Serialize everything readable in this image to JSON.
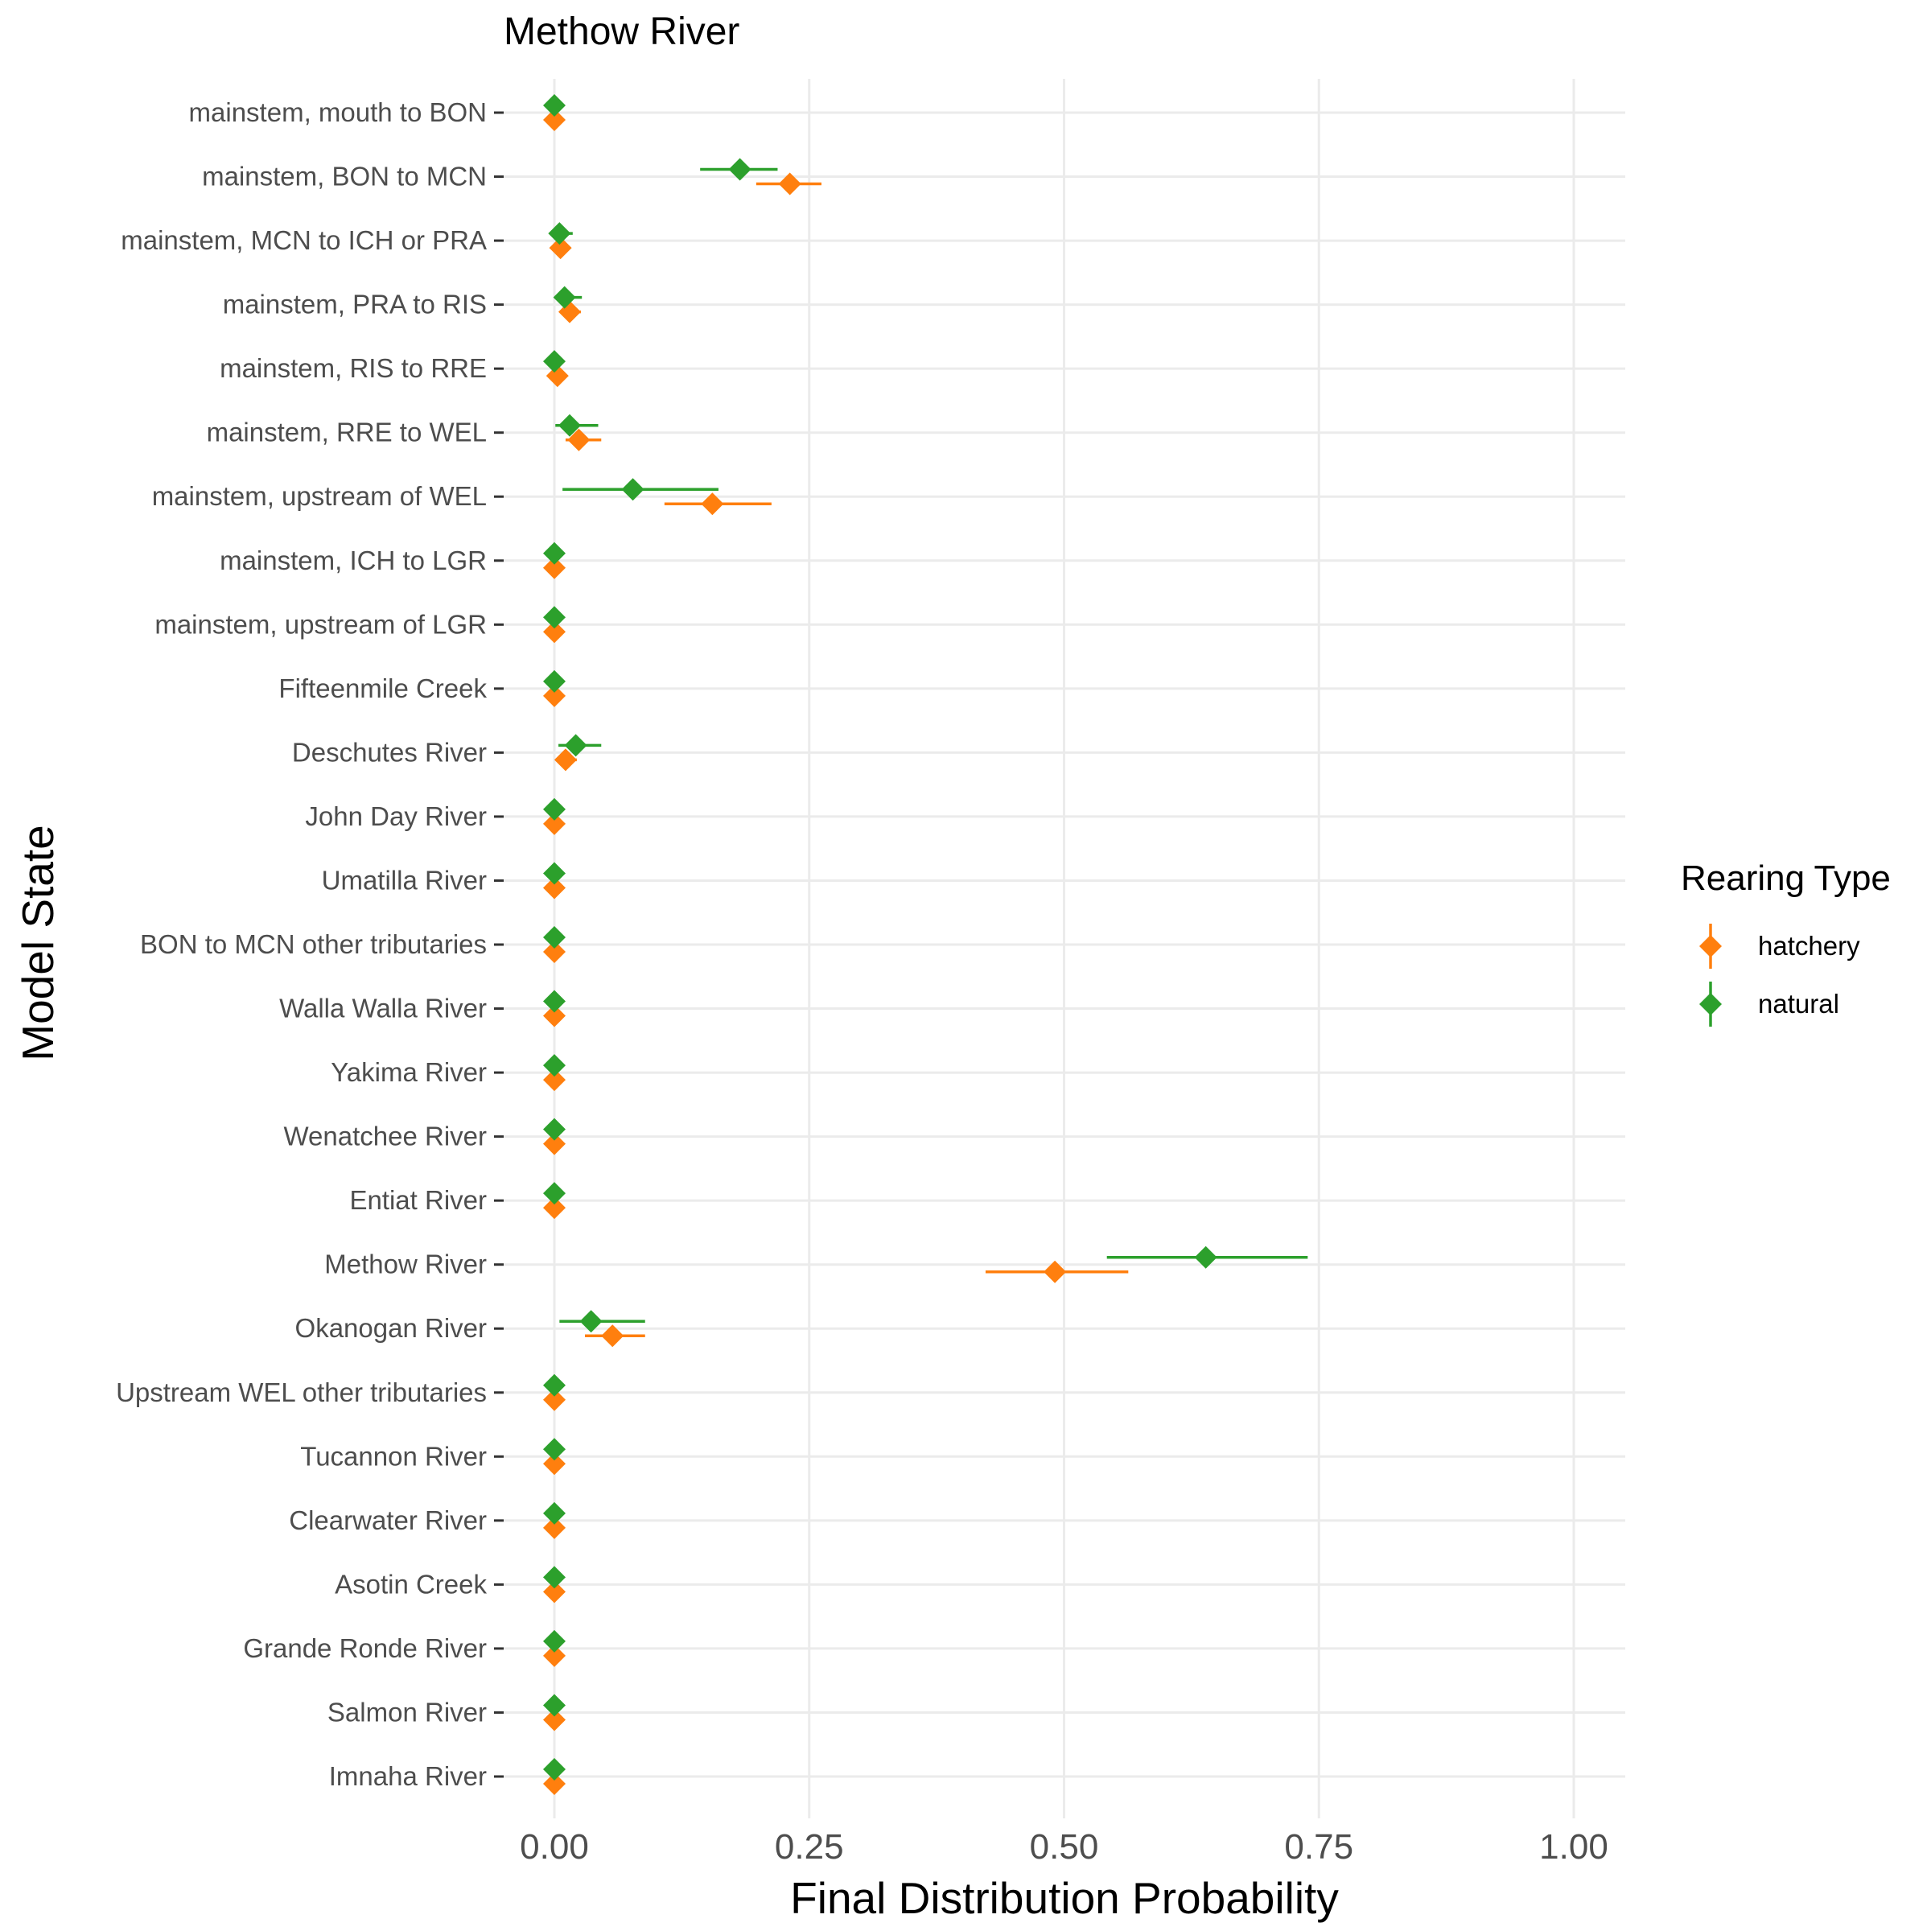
{
  "chart_data": {
    "type": "scatter",
    "title": "Methow River",
    "xlabel": "Final Distribution Probability",
    "ylabel": "Model State",
    "xlim": [
      -0.05,
      1.05
    ],
    "xticks": [
      0.0,
      0.25,
      0.5,
      0.75,
      1.0
    ],
    "xtick_labels": [
      "0.00",
      "0.25",
      "0.50",
      "0.75",
      "1.00"
    ],
    "grid": true,
    "categories": [
      "mainstem, mouth to BON",
      "mainstem, BON to MCN",
      "mainstem, MCN to ICH or PRA",
      "mainstem, PRA to RIS",
      "mainstem, RIS to RRE",
      "mainstem, RRE to WEL",
      "mainstem, upstream of WEL",
      "mainstem, ICH to LGR",
      "mainstem, upstream of LGR",
      "Fifteenmile Creek",
      "Deschutes River",
      "John Day River",
      "Umatilla River",
      "BON to MCN other tributaries",
      "Walla Walla River",
      "Yakima River",
      "Wenatchee River",
      "Entiat River",
      "Methow River",
      "Okanogan River",
      "Upstream WEL other tributaries",
      "Tucannon River",
      "Clearwater River",
      "Asotin Creek",
      "Grande Ronde River",
      "Salmon River",
      "Imnaha River"
    ],
    "legend": {
      "title": "Rearing Type",
      "position": "right"
    },
    "series": [
      {
        "name": "hatchery",
        "color": "#ff7f0e",
        "values": [
          0.0,
          0.231,
          0.006,
          0.015,
          0.003,
          0.024,
          0.155,
          0.0,
          0.0,
          0.0,
          0.011,
          0.0,
          0.0,
          0.0,
          0.0,
          0.0,
          0.0,
          0.0,
          0.491,
          0.057,
          0.0,
          0.0,
          0.0,
          0.0,
          0.0,
          0.0,
          0.0
        ],
        "lower": [
          0.0,
          0.198,
          0.001,
          0.006,
          0.0,
          0.011,
          0.108,
          0.0,
          0.0,
          0.0,
          0.003,
          0.0,
          0.0,
          0.0,
          0.0,
          0.0,
          0.0,
          0.0,
          0.423,
          0.03,
          0.0,
          0.0,
          0.0,
          0.0,
          0.0,
          0.0,
          0.0
        ],
        "upper": [
          0.002,
          0.262,
          0.012,
          0.026,
          0.008,
          0.046,
          0.213,
          0.002,
          0.002,
          0.002,
          0.022,
          0.002,
          0.002,
          0.002,
          0.002,
          0.002,
          0.002,
          0.002,
          0.563,
          0.089,
          0.002,
          0.002,
          0.002,
          0.002,
          0.002,
          0.002,
          0.002
        ]
      },
      {
        "name": "natural",
        "color": "#2ca02c",
        "values": [
          0.0,
          0.182,
          0.005,
          0.01,
          0.0,
          0.015,
          0.077,
          0.0,
          0.0,
          0.0,
          0.021,
          0.0,
          0.0,
          0.0,
          0.0,
          0.0,
          0.0,
          0.0,
          0.639,
          0.036,
          0.0,
          0.0,
          0.0,
          0.0,
          0.0,
          0.0,
          0.0
        ],
        "lower": [
          0.0,
          0.143,
          0.0,
          0.0,
          0.0,
          0.001,
          0.008,
          0.0,
          0.0,
          0.0,
          0.004,
          0.0,
          0.0,
          0.0,
          0.0,
          0.0,
          0.0,
          0.0,
          0.542,
          0.005,
          0.0,
          0.0,
          0.0,
          0.0,
          0.0,
          0.0,
          0.0
        ],
        "upper": [
          0.002,
          0.219,
          0.018,
          0.027,
          0.004,
          0.043,
          0.161,
          0.002,
          0.002,
          0.002,
          0.046,
          0.002,
          0.002,
          0.002,
          0.002,
          0.002,
          0.002,
          0.002,
          0.739,
          0.089,
          0.002,
          0.002,
          0.002,
          0.002,
          0.002,
          0.002,
          0.002
        ]
      }
    ]
  }
}
